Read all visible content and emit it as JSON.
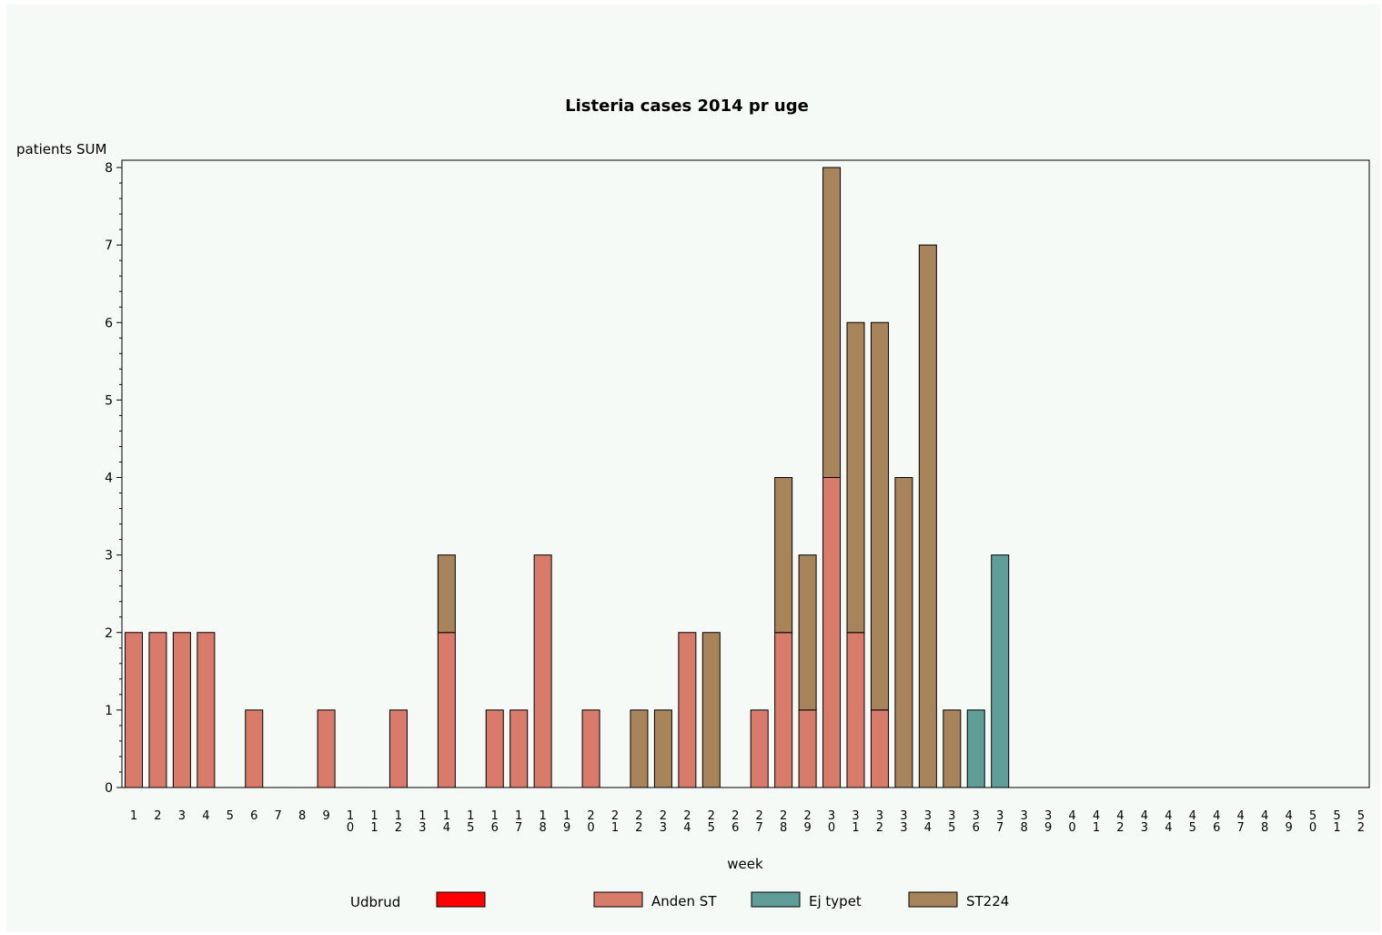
{
  "chart_data": {
    "type": "bar",
    "stacked": true,
    "title": "Listeria cases 2014 pr uge",
    "xlabel": "week",
    "ylabel": "patients SUM",
    "ylim": [
      0,
      8
    ],
    "yticks": [
      0,
      1,
      2,
      3,
      4,
      5,
      6,
      7,
      8
    ],
    "grid": false,
    "legend_title": "Udbrud",
    "legend_position": "bottom",
    "categories": [
      "1",
      "2",
      "3",
      "4",
      "5",
      "6",
      "7",
      "8",
      "9",
      "10",
      "11",
      "12",
      "13",
      "14",
      "15",
      "16",
      "17",
      "18",
      "19",
      "20",
      "21",
      "22",
      "23",
      "24",
      "25",
      "26",
      "27",
      "28",
      "29",
      "30",
      "31",
      "32",
      "33",
      "34",
      "35",
      "36",
      "37",
      "38",
      "39",
      "40",
      "41",
      "42",
      "43",
      "44",
      "45",
      "46",
      "47",
      "48",
      "49",
      "50",
      "51",
      "52"
    ],
    "series": [
      {
        "name": "",
        "color": "#ff0000",
        "values": [
          0,
          0,
          0,
          0,
          0,
          0,
          0,
          0,
          0,
          0,
          0,
          0,
          0,
          0,
          0,
          0,
          0,
          0,
          0,
          0,
          0,
          0,
          0,
          0,
          0,
          0,
          0,
          0,
          0,
          0,
          0,
          0,
          0,
          0,
          0,
          0,
          0,
          0,
          0,
          0,
          0,
          0,
          0,
          0,
          0,
          0,
          0,
          0,
          0,
          0,
          0,
          0
        ]
      },
      {
        "name": "Anden ST",
        "color": "#d97b6a",
        "values": [
          2,
          2,
          2,
          2,
          0,
          1,
          0,
          0,
          1,
          0,
          0,
          1,
          0,
          2,
          0,
          1,
          1,
          3,
          0,
          1,
          0,
          0,
          0,
          2,
          0,
          0,
          1,
          2,
          1,
          4,
          2,
          1,
          0,
          0,
          0,
          0,
          0,
          0,
          0,
          0,
          0,
          0,
          0,
          0,
          0,
          0,
          0,
          0,
          0,
          0,
          0,
          0
        ]
      },
      {
        "name": "Ej typet",
        "color": "#5f9e98",
        "values": [
          0,
          0,
          0,
          0,
          0,
          0,
          0,
          0,
          0,
          0,
          0,
          0,
          0,
          0,
          0,
          0,
          0,
          0,
          0,
          0,
          0,
          0,
          0,
          0,
          0,
          0,
          0,
          0,
          0,
          0,
          0,
          0,
          0,
          0,
          0,
          1,
          3,
          0,
          0,
          0,
          0,
          0,
          0,
          0,
          0,
          0,
          0,
          0,
          0,
          0,
          0,
          0
        ]
      },
      {
        "name": "ST224",
        "color": "#a8845a",
        "values": [
          0,
          0,
          0,
          0,
          0,
          0,
          0,
          0,
          0,
          0,
          0,
          0,
          0,
          1,
          0,
          0,
          0,
          0,
          0,
          0,
          0,
          1,
          1,
          0,
          2,
          0,
          0,
          2,
          2,
          4,
          4,
          5,
          4,
          7,
          1,
          0,
          0,
          0,
          0,
          0,
          0,
          0,
          0,
          0,
          0,
          0,
          0,
          0,
          0,
          0,
          0,
          0
        ]
      }
    ]
  }
}
